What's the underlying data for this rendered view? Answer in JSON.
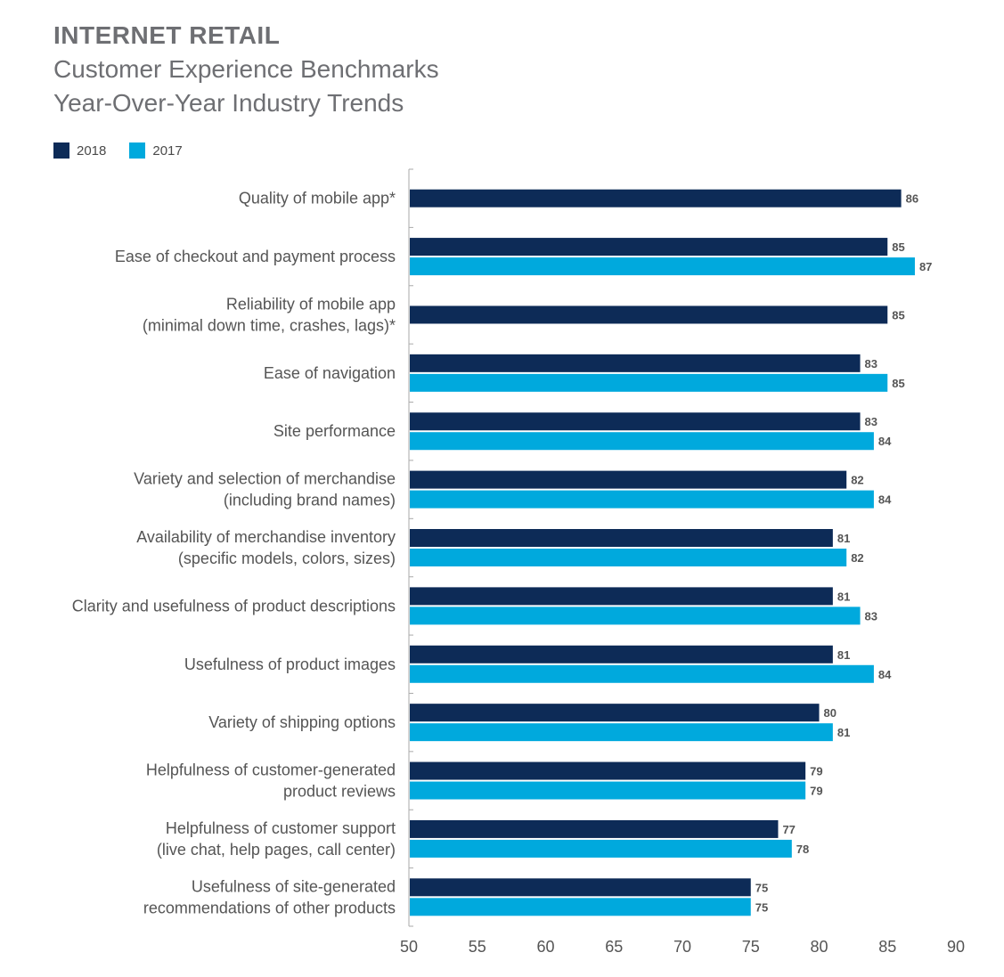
{
  "chart_data": {
    "type": "bar",
    "orientation": "horizontal",
    "title": "INTERNET RETAIL",
    "subtitle": [
      "Customer Experience Benchmarks",
      "Year-Over-Year Industry Trends"
    ],
    "categories": [
      [
        "Quality of mobile app*"
      ],
      [
        "Ease of checkout and payment process"
      ],
      [
        "Reliability of mobile app",
        "(minimal down time, crashes, lags)*"
      ],
      [
        "Ease of navigation"
      ],
      [
        "Site performance"
      ],
      [
        "Variety and selection of merchandise",
        "(including brand names)"
      ],
      [
        "Availability of merchandise inventory",
        "(specific models, colors, sizes)"
      ],
      [
        "Clarity and usefulness of product descriptions"
      ],
      [
        "Usefulness of product images"
      ],
      [
        "Variety of shipping options"
      ],
      [
        "Helpfulness of customer-generated",
        "product reviews"
      ],
      [
        "Helpfulness of customer support",
        "(live chat, help pages, call center)"
      ],
      [
        "Usefulness of site-generated",
        "recommendations of other products"
      ]
    ],
    "series": [
      {
        "name": "2018",
        "color": "#0d2b57",
        "values": [
          86,
          85,
          85,
          83,
          83,
          82,
          81,
          81,
          81,
          80,
          79,
          77,
          75
        ]
      },
      {
        "name": "2017",
        "color": "#00a9dd",
        "values": [
          null,
          87,
          null,
          85,
          84,
          84,
          82,
          83,
          84,
          81,
          79,
          78,
          75
        ]
      }
    ],
    "xlim": [
      50,
      90
    ],
    "xticks": [
      50,
      55,
      60,
      65,
      70,
      75,
      80,
      85,
      90
    ],
    "xlabel": "",
    "ylabel": "",
    "legend_position": "top-left",
    "grid": false
  }
}
